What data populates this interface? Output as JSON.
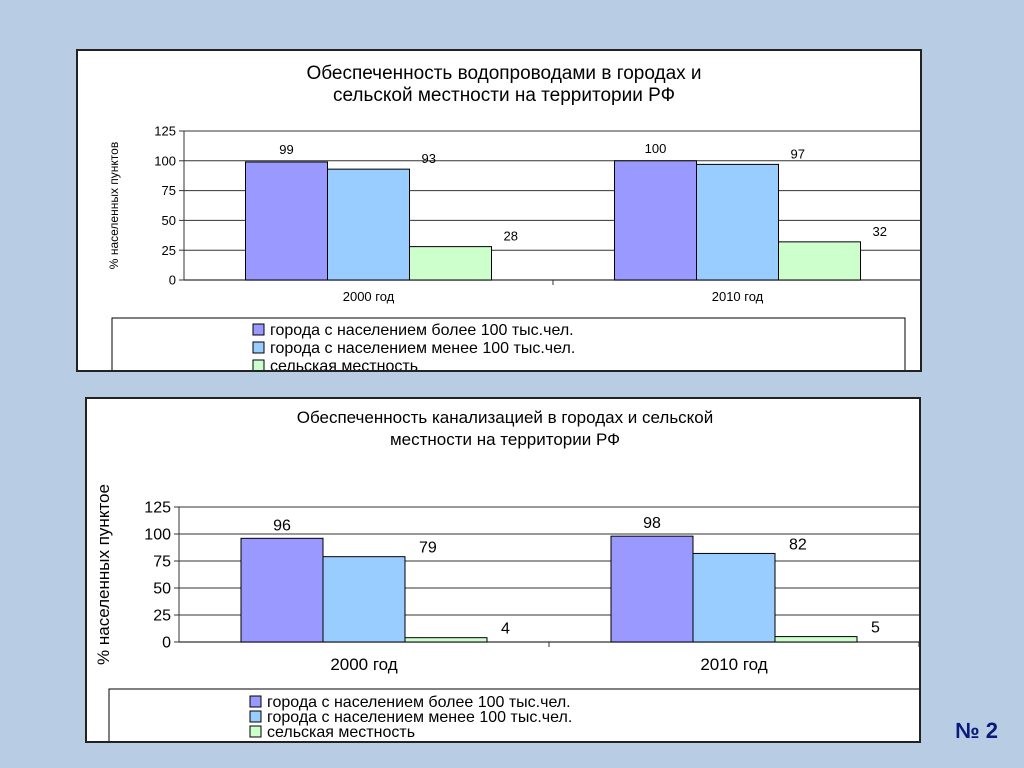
{
  "slide_number": "№ 2",
  "colors": {
    "series1": "#9999ff",
    "series2": "#99ccff",
    "series3": "#ccffcc"
  },
  "chart_data": [
    {
      "type": "bar",
      "title_lines": [
        "Обеспеченность водопроводами в городах и",
        "сельской местности на территории РФ"
      ],
      "ylabel": "% населенных пунктов",
      "categories": [
        "2000 год",
        "2010 год"
      ],
      "ylim": [
        0,
        125
      ],
      "yticks": [
        "0",
        "25",
        "50",
        "75",
        "100",
        "125"
      ],
      "grid": true,
      "legend_position": "bottom",
      "series": [
        {
          "name": "города с населением более 100 тыс.чел.",
          "values": [
            99,
            100
          ]
        },
        {
          "name": "города с населением менее 100 тыс.чел.",
          "values": [
            93,
            97
          ]
        },
        {
          "name": "сельская местность",
          "values": [
            28,
            32
          ]
        }
      ]
    },
    {
      "type": "bar",
      "title_lines": [
        "Обеспеченность канализацией в городах и сельской",
        "местности на территории РФ"
      ],
      "ylabel": "% населенных пунктое",
      "categories": [
        "2000 год",
        "2010 год"
      ],
      "ylim": [
        0,
        125
      ],
      "yticks": [
        "0",
        "25",
        "50",
        "75",
        "100",
        "125"
      ],
      "grid": true,
      "legend_position": "bottom",
      "series": [
        {
          "name": "города с населением более 100 тыс.чел.",
          "values": [
            96,
            98
          ]
        },
        {
          "name": "города с населением менее 100 тыс.чел.",
          "values": [
            79,
            82
          ]
        },
        {
          "name": "сельская местность",
          "values": [
            4,
            5
          ]
        }
      ]
    }
  ]
}
